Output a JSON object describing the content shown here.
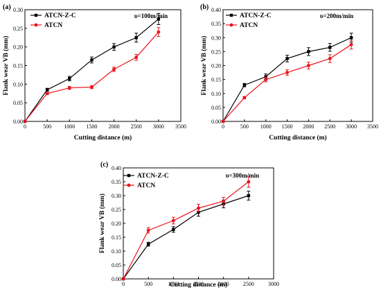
{
  "colors": {
    "ATCN-Z-C": "#000000",
    "ATCN": "#e8141c"
  },
  "chart_data": [
    {
      "type": "line",
      "panel_label": "(a)",
      "speed_label": "υ=100m/min",
      "xlabel": "Cutting distance (m)",
      "ylabel": "Flank wear VB (mm)",
      "xlim": [
        0,
        3500
      ],
      "ylim": [
        0,
        0.3
      ],
      "xticks": [
        0,
        500,
        1000,
        1500,
        2000,
        2500,
        3000,
        3500
      ],
      "yticks": [
        0,
        0.05,
        0.1,
        0.15,
        0.2,
        0.25,
        0.3
      ],
      "ytick_labels": [
        "0.00",
        "0.05",
        "0.10",
        "0.15",
        "0.20",
        "0.25",
        "0.30"
      ],
      "legend_position": "top-left",
      "series": [
        {
          "name": "ATCN-Z-C",
          "color": "#000000",
          "marker": "square",
          "x": [
            0,
            500,
            1000,
            1500,
            2000,
            2500,
            3000
          ],
          "y": [
            0,
            0.085,
            0.115,
            0.165,
            0.2,
            0.225,
            0.275
          ],
          "err": [
            0,
            0.004,
            0.006,
            0.008,
            0.009,
            0.012,
            0.015
          ]
        },
        {
          "name": "ATCN",
          "color": "#e8141c",
          "marker": "circle",
          "x": [
            0,
            500,
            1000,
            1500,
            2000,
            2500,
            3000
          ],
          "y": [
            0,
            0.075,
            0.09,
            0.092,
            0.14,
            0.172,
            0.24
          ],
          "err": [
            0,
            0.003,
            0.004,
            0.004,
            0.006,
            0.008,
            0.012
          ]
        }
      ]
    },
    {
      "type": "line",
      "panel_label": "(b)",
      "speed_label": "υ=200m/min",
      "xlabel": "Cutting distance (m)",
      "ylabel": "Flank wear VB (mm)",
      "xlim": [
        0,
        3500
      ],
      "ylim": [
        0,
        0.4
      ],
      "xticks": [
        0,
        500,
        1000,
        1500,
        2000,
        2500,
        3000,
        3500
      ],
      "yticks": [
        0,
        0.05,
        0.1,
        0.15,
        0.2,
        0.25,
        0.3,
        0.35,
        0.4
      ],
      "ytick_labels": [
        "0.00",
        "0.05",
        "0.10",
        "0.15",
        "0.20",
        "0.25",
        "0.30",
        "0.35",
        "0.40"
      ],
      "legend_position": "top-left",
      "series": [
        {
          "name": "ATCN-Z-C",
          "color": "#000000",
          "marker": "square",
          "x": [
            0,
            500,
            1000,
            1500,
            2000,
            2500,
            3000
          ],
          "y": [
            0,
            0.13,
            0.16,
            0.225,
            0.25,
            0.265,
            0.3
          ],
          "err": [
            0,
            0.006,
            0.01,
            0.012,
            0.014,
            0.014,
            0.016
          ]
        },
        {
          "name": "ATCN",
          "color": "#e8141c",
          "marker": "circle",
          "x": [
            0,
            500,
            1000,
            1500,
            2000,
            2500,
            3000
          ],
          "y": [
            0,
            0.085,
            0.15,
            0.175,
            0.2,
            0.225,
            0.275
          ],
          "err": [
            0,
            0.004,
            0.008,
            0.01,
            0.012,
            0.014,
            0.016
          ]
        }
      ]
    },
    {
      "type": "line",
      "panel_label": "(c)",
      "speed_label": "υ=300m/min",
      "xlabel": "Cutting distance (m)",
      "ylabel": "Flank wear VB (mm)",
      "xlim": [
        0,
        3000
      ],
      "ylim": [
        0,
        0.4
      ],
      "xticks": [
        0,
        500,
        1000,
        1500,
        2000,
        2500,
        3000
      ],
      "yticks": [
        0,
        0.05,
        0.1,
        0.15,
        0.2,
        0.25,
        0.3,
        0.35,
        0.4
      ],
      "ytick_labels": [
        "0.00",
        "0.05",
        "0.10",
        "0.15",
        "0.20",
        "0.25",
        "0.30",
        "0.35",
        "0.40"
      ],
      "legend_position": "top-left",
      "series": [
        {
          "name": "ATCN-Z-C",
          "color": "#000000",
          "marker": "square",
          "x": [
            0,
            500,
            1000,
            1500,
            2000,
            2500
          ],
          "y": [
            0,
            0.125,
            0.178,
            0.24,
            0.27,
            0.3
          ],
          "err": [
            0,
            0.007,
            0.01,
            0.014,
            0.014,
            0.016
          ]
        },
        {
          "name": "ATCN",
          "color": "#e8141c",
          "marker": "circle",
          "x": [
            0,
            500,
            1000,
            1500,
            2000,
            2500
          ],
          "y": [
            0,
            0.175,
            0.21,
            0.255,
            0.28,
            0.35
          ],
          "err": [
            0,
            0.01,
            0.012,
            0.014,
            0.014,
            0.02
          ]
        }
      ]
    }
  ]
}
